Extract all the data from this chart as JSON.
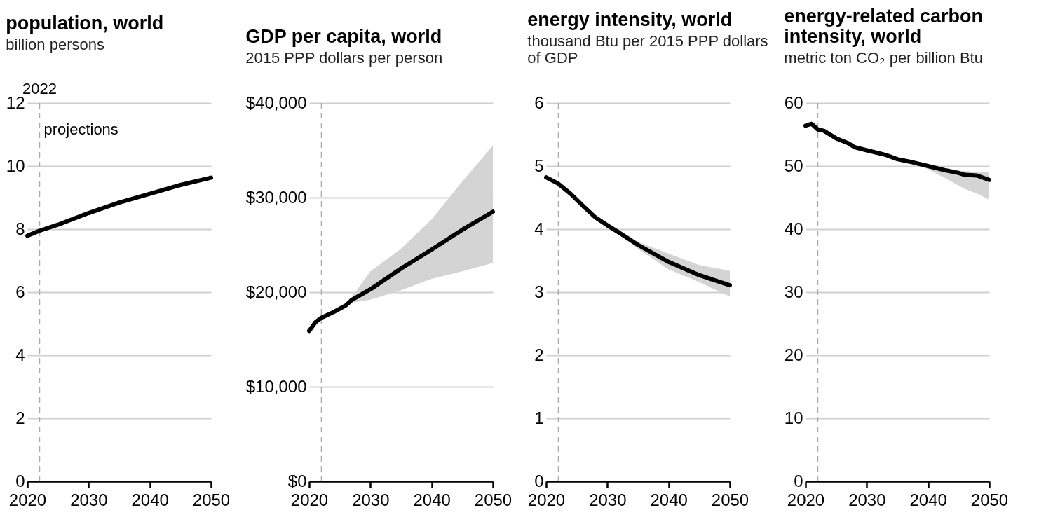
{
  "chart_data": [
    {
      "type": "line",
      "title": "population, world",
      "subtitle": "billion persons",
      "xlim": [
        2020,
        2050
      ],
      "xticks": [
        2020,
        2030,
        2040,
        2050
      ],
      "ylim": [
        0,
        12
      ],
      "yticks": [
        0,
        2,
        4,
        6,
        8,
        10,
        12
      ],
      "grid": "y",
      "series": [
        {
          "color": "#000000",
          "x": [
            2020,
            2022,
            2025,
            2030,
            2035,
            2040,
            2045,
            2050
          ],
          "values": [
            7.79,
            7.95,
            8.14,
            8.51,
            8.84,
            9.12,
            9.4,
            9.63
          ]
        }
      ],
      "ref_lines": [
        {
          "axis": "x",
          "value": 2022,
          "label": "2022",
          "color": "#aaaaaa",
          "line_style": "dashed"
        }
      ],
      "annotations": [
        "projections"
      ]
    },
    {
      "type": "line",
      "title": "GDP per capita, world",
      "subtitle": "2015 PPP dollars per person",
      "xlim": [
        2020,
        2050
      ],
      "xticks": [
        2020,
        2030,
        2040,
        2050
      ],
      "ylim": [
        0,
        40000
      ],
      "yticks": [
        {
          "value": 0,
          "label": "$0"
        },
        {
          "value": 10000,
          "label": "$10,000"
        },
        {
          "value": 20000,
          "label": "$20,000"
        },
        {
          "value": 30000,
          "label": "$30,000"
        },
        {
          "value": 40000,
          "label": "$40,000"
        }
      ],
      "grid": "y",
      "series": [
        {
          "color": "#000000",
          "x": [
            2020,
            2021,
            2022,
            2024,
            2026,
            2027,
            2030,
            2035,
            2040,
            2045,
            2050
          ],
          "values": [
            15900,
            16800,
            17300,
            17900,
            18600,
            19200,
            20300,
            22500,
            24500,
            26600,
            28500
          ],
          "lower": [
            null,
            null,
            null,
            null,
            18500,
            18900,
            19200,
            20200,
            21400,
            22200,
            23100
          ],
          "upper": [
            null,
            null,
            null,
            null,
            18700,
            19500,
            22200,
            24600,
            27700,
            31700,
            35500
          ]
        }
      ],
      "ref_lines": [
        {
          "axis": "x",
          "value": 2022,
          "color": "#aaaaaa",
          "line_style": "dashed"
        }
      ]
    },
    {
      "type": "line",
      "title": "energy intensity, world",
      "subtitle": "thousand Btu per 2015 PPP dollars of GDP",
      "xlim": [
        2020,
        2050
      ],
      "xticks": [
        2020,
        2030,
        2040,
        2050
      ],
      "ylim": [
        0,
        6
      ],
      "yticks": [
        0,
        1,
        2,
        3,
        4,
        5,
        6
      ],
      "grid": "y",
      "series": [
        {
          "color": "#000000",
          "x": [
            2020,
            2022,
            2024,
            2026,
            2028,
            2030,
            2032,
            2035,
            2040,
            2045,
            2050
          ],
          "values": [
            4.82,
            4.72,
            4.56,
            4.37,
            4.19,
            4.06,
            3.94,
            3.75,
            3.48,
            3.27,
            3.11
          ],
          "lower": [
            null,
            null,
            null,
            null,
            null,
            4.04,
            3.91,
            3.69,
            3.36,
            3.16,
            2.93
          ],
          "upper": [
            null,
            null,
            null,
            null,
            null,
            4.07,
            3.98,
            3.8,
            3.61,
            3.43,
            3.34
          ]
        }
      ],
      "ref_lines": [
        {
          "axis": "x",
          "value": 2022,
          "color": "#aaaaaa",
          "line_style": "dashed"
        }
      ]
    },
    {
      "type": "line",
      "title": "energy-related carbon intensity, world",
      "subtitle": "metric ton CO₂ per billion Btu",
      "xlim": [
        2020,
        2050
      ],
      "xticks": [
        2020,
        2030,
        2040,
        2050
      ],
      "ylim": [
        0,
        60
      ],
      "yticks": [
        0,
        10,
        20,
        30,
        40,
        50,
        60
      ],
      "grid": "y",
      "series": [
        {
          "color": "#000000",
          "x": [
            2020,
            2021,
            2022,
            2023,
            2025,
            2027,
            2028,
            2030,
            2033,
            2035,
            2037,
            2040,
            2043,
            2045,
            2046,
            2048,
            2050
          ],
          "values": [
            56.4,
            56.7,
            55.8,
            55.6,
            54.4,
            53.6,
            53.0,
            52.5,
            51.8,
            51.1,
            50.7,
            50.0,
            49.3,
            48.9,
            48.6,
            48.5,
            47.8
          ],
          "lower": [
            null,
            null,
            null,
            null,
            null,
            null,
            null,
            null,
            null,
            null,
            50.6,
            49.5,
            48.0,
            46.9,
            46.4,
            45.6,
            44.7
          ],
          "upper": [
            null,
            null,
            null,
            null,
            null,
            null,
            null,
            null,
            null,
            null,
            50.8,
            50.1,
            49.6,
            49.3,
            49.2,
            49.1,
            49.1
          ]
        }
      ],
      "ref_lines": [
        {
          "axis": "x",
          "value": 2022,
          "color": "#aaaaaa",
          "line_style": "dashed"
        }
      ]
    }
  ]
}
